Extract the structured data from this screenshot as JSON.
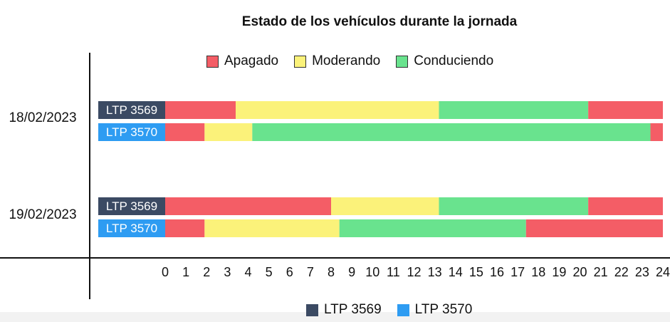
{
  "chart_data": {
    "type": "bar",
    "orientation": "horizontal-stacked",
    "title": "Estado de los vehículos durante la jornada",
    "xlabel": "",
    "ylabel": "",
    "xlim": [
      0,
      24
    ],
    "x_ticks": [
      "0",
      "1",
      "2",
      "3",
      "4",
      "5",
      "6",
      "7",
      "8",
      "9",
      "10",
      "11",
      "12",
      "13",
      "14",
      "15",
      "16",
      "17",
      "18",
      "19",
      "20",
      "21",
      "22",
      "23",
      "24"
    ],
    "grid": false,
    "state_legend": [
      {
        "name": "Apagado",
        "color": "#f45d66"
      },
      {
        "name": "Moderando",
        "color": "#fbf27a"
      },
      {
        "name": "Conduciendo",
        "color": "#69e38e"
      }
    ],
    "vehicle_legend": [
      {
        "name": "LTP 3569",
        "color": "#3b4a63"
      },
      {
        "name": "LTP 3570",
        "color": "#2e9cf2"
      }
    ],
    "dates": [
      {
        "label": "18/02/2023",
        "rows": [
          {
            "vehicle": "LTP 3569",
            "color": "#3b4a63",
            "segments": [
              {
                "state": "Apagado",
                "start": 0,
                "end": 3.4
              },
              {
                "state": "Moderando",
                "start": 3.4,
                "end": 13.2
              },
              {
                "state": "Conduciendo",
                "start": 13.2,
                "end": 20.4
              },
              {
                "state": "Apagado",
                "start": 20.4,
                "end": 24
              }
            ]
          },
          {
            "vehicle": "LTP 3570",
            "color": "#2e9cf2",
            "segments": [
              {
                "state": "Apagado",
                "start": 0,
                "end": 1.9
              },
              {
                "state": "Moderando",
                "start": 1.9,
                "end": 4.2
              },
              {
                "state": "Conduciendo",
                "start": 4.2,
                "end": 23.4
              },
              {
                "state": "Apagado",
                "start": 23.4,
                "end": 24
              }
            ]
          }
        ]
      },
      {
        "label": "19/02/2023",
        "rows": [
          {
            "vehicle": "LTP 3569",
            "color": "#3b4a63",
            "segments": [
              {
                "state": "Apagado",
                "start": 0,
                "end": 8.0
              },
              {
                "state": "Moderando",
                "start": 8.0,
                "end": 13.2
              },
              {
                "state": "Conduciendo",
                "start": 13.2,
                "end": 20.4
              },
              {
                "state": "Apagado",
                "start": 20.4,
                "end": 24
              }
            ]
          },
          {
            "vehicle": "LTP 3570",
            "color": "#2e9cf2",
            "segments": [
              {
                "state": "Apagado",
                "start": 0,
                "end": 1.9
              },
              {
                "state": "Moderando",
                "start": 1.9,
                "end": 8.4
              },
              {
                "state": "Conduciendo",
                "start": 8.4,
                "end": 17.4
              },
              {
                "state": "Apagado",
                "start": 17.4,
                "end": 24
              }
            ]
          }
        ]
      }
    ]
  }
}
